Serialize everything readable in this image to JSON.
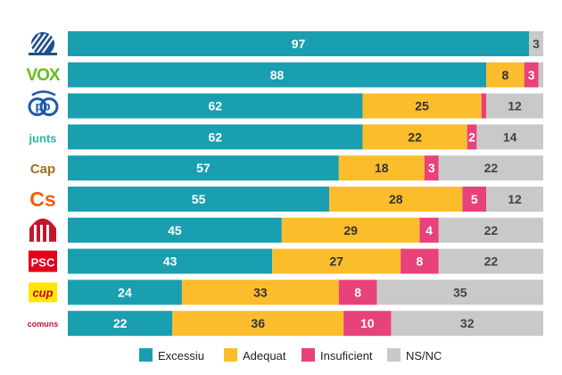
{
  "chart_data": {
    "type": "bar",
    "orientation": "horizontal",
    "stacked": true,
    "categories": [
      "Aliança Catalana",
      "Vox",
      "PP",
      "Junts",
      "Cap",
      "Cs",
      "ERC",
      "PSC",
      "CUP",
      "Comuns"
    ],
    "logo_text": {
      "Vox": "VOX",
      "PP": "pp",
      "Junts": "junts",
      "Cap": "Cap",
      "Cs": "Cs",
      "PSC": "PSC",
      "CUP": "cup",
      "Comuns": "comuns"
    },
    "series": [
      {
        "name": "Excessiu",
        "color": "#1a9fb0",
        "values": [
          97,
          88,
          62,
          62,
          57,
          55,
          45,
          43,
          24,
          22
        ]
      },
      {
        "name": "Adequat",
        "color": "#fbbd2b",
        "values": [
          0,
          8,
          25,
          22,
          18,
          28,
          29,
          27,
          33,
          36
        ]
      },
      {
        "name": "Insuficient",
        "color": "#e8427a",
        "values": [
          0,
          3,
          1,
          2,
          3,
          5,
          4,
          8,
          8,
          10
        ]
      },
      {
        "name": "NS/NC",
        "color": "#c9c9c9",
        "values": [
          3,
          1,
          12,
          14,
          22,
          12,
          22,
          22,
          35,
          32
        ]
      }
    ],
    "labels": [
      [
        "97",
        "",
        "",
        "3"
      ],
      [
        "88",
        "8",
        "3",
        ""
      ],
      [
        "62",
        "25",
        "",
        "12"
      ],
      [
        "62",
        "22",
        "2",
        "14"
      ],
      [
        "57",
        "18",
        "3",
        "22"
      ],
      [
        "55",
        "28",
        "5",
        "12"
      ],
      [
        "45",
        "29",
        "4",
        "22"
      ],
      [
        "43",
        "27",
        "8",
        "22"
      ],
      [
        "24",
        "33",
        "8",
        "35"
      ],
      [
        "22",
        "36",
        "10",
        "32"
      ]
    ],
    "xlim": [
      0,
      100
    ],
    "legend": "bottom",
    "grid": false
  },
  "colors": {
    "vox": "#63be21",
    "pp": "#1d5aa9",
    "junts": "#27b8a6",
    "cap": "#a66a1e",
    "cs": "#eb6109",
    "erc": "#c2172b",
    "psc": "#e3001b",
    "cup": "#ffe600",
    "comuns": "#c8102e",
    "ac": "#1d4f8c"
  }
}
